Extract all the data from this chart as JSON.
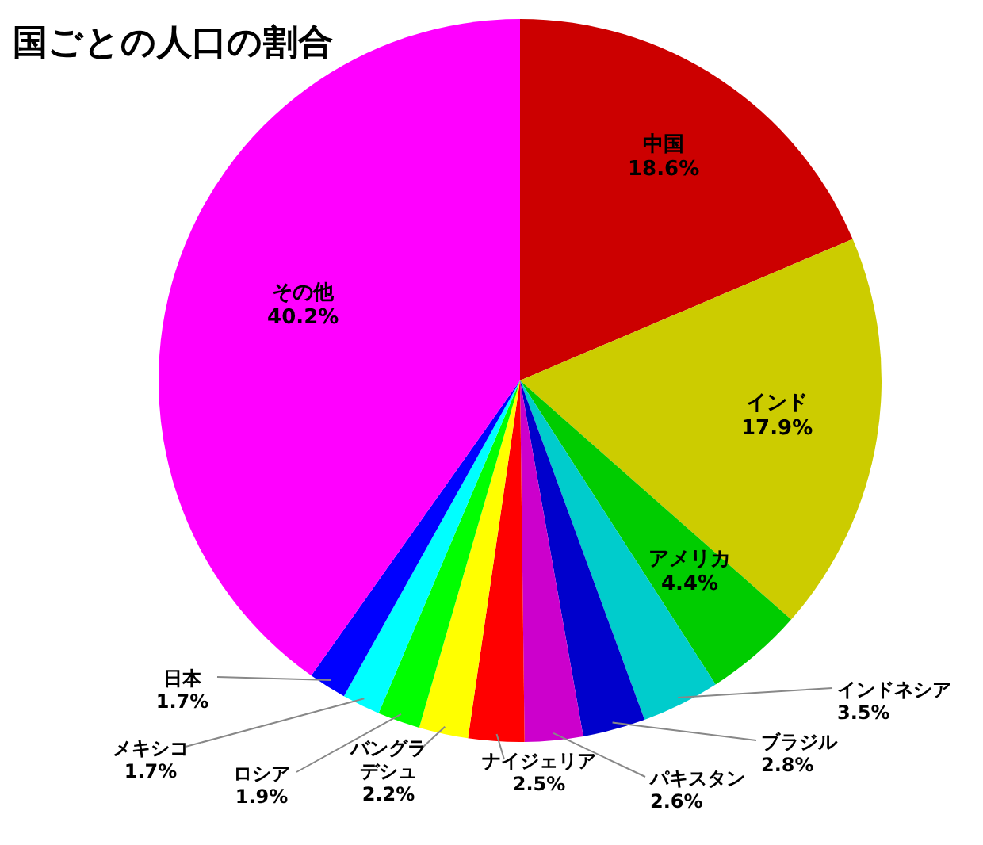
{
  "chart_data": {
    "type": "pie",
    "title": "国ごとの人口の割合",
    "categories": [
      "中国",
      "インド",
      "アメリカ",
      "インドネシア",
      "ブラジル",
      "パキスタン",
      "ナイジェリア",
      "バングラデシュ",
      "ロシア",
      "メキシコ",
      "日本",
      "その他"
    ],
    "values": [
      18.6,
      17.9,
      4.4,
      3.5,
      2.8,
      2.6,
      2.5,
      2.2,
      1.9,
      1.7,
      1.7,
      40.2
    ],
    "colors": [
      "#cc0000",
      "#cccc00",
      "#00cc00",
      "#00cccc",
      "#0000cc",
      "#cc00cc",
      "#ff0000",
      "#ffff00",
      "#00ff00",
      "#00ffff",
      "#0000ff",
      "#ff00ff"
    ],
    "value_labels": [
      "18.6%",
      "17.9%",
      "4.4%",
      "3.5%",
      "2.8%",
      "2.6%",
      "2.5%",
      "2.2%",
      "1.9%",
      "1.7%",
      "1.7%",
      "40.2%"
    ],
    "legend": false
  }
}
